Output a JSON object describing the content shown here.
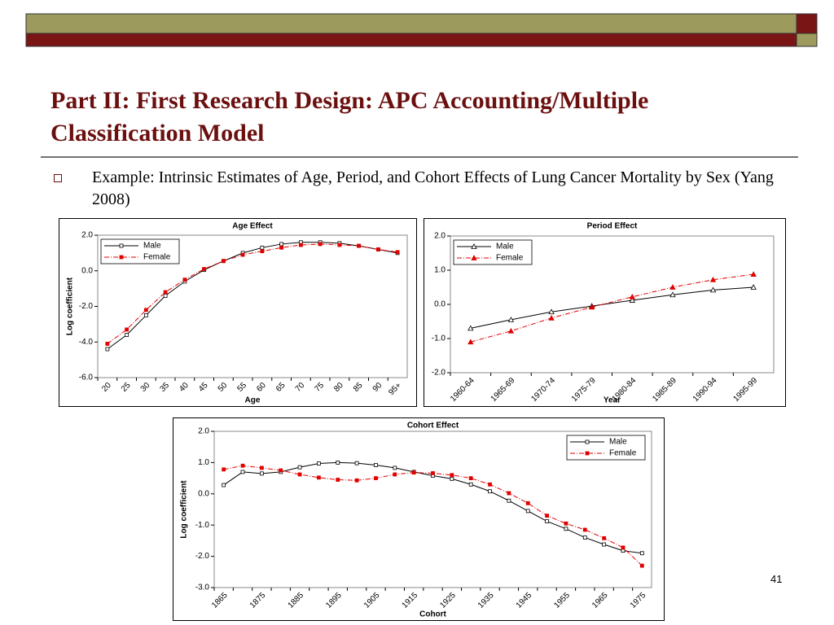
{
  "slide_title": "Part II:  First Research Design: APC Accounting/Multiple Classification Model",
  "bullet": "Example: Intrinsic Estimates of Age, Period, and Cohort Effects of Lung Cancer Mortality by Sex (Yang 2008)",
  "page_number": "41",
  "chart_data": [
    {
      "type": "line",
      "title": "Age Effect",
      "x_label": "Age",
      "y_label": "Log coefficient",
      "categories": [
        "20",
        "25",
        "30",
        "35",
        "40",
        "45",
        "50",
        "55",
        "60",
        "65",
        "70",
        "75",
        "80",
        "85",
        "90",
        "95+"
      ],
      "series": [
        {
          "name": "Male",
          "color": "#000000",
          "marker": "square",
          "values": [
            -4.4,
            -3.6,
            -2.5,
            -1.4,
            -0.6,
            0.05,
            0.55,
            1.0,
            1.3,
            1.5,
            1.6,
            1.6,
            1.55,
            1.4,
            1.2,
            1.0
          ]
        },
        {
          "name": "Female",
          "color": "#e00000",
          "marker": "square",
          "values": [
            -4.1,
            -3.3,
            -2.2,
            -1.2,
            -0.5,
            0.1,
            0.55,
            0.9,
            1.1,
            1.3,
            1.45,
            1.5,
            1.45,
            1.4,
            1.2,
            1.05
          ]
        }
      ],
      "ylim": [
        -6,
        2
      ],
      "yticks": [
        {
          "value": -6,
          "label": "-6.0"
        },
        {
          "value": -4,
          "label": "-4.0"
        },
        {
          "value": -2,
          "label": "-2.0"
        },
        {
          "value": 0,
          "label": "0.0"
        },
        {
          "value": 2,
          "label": "2.0"
        }
      ],
      "legend": "upper left"
    },
    {
      "type": "line",
      "title": "Period Effect",
      "x_label": "Year",
      "categories": [
        "1960-64",
        "1965-69",
        "1970-74",
        "1975-79",
        "1980-84",
        "1985-89",
        "1990-94",
        "1995-99"
      ],
      "series": [
        {
          "name": "Male",
          "color": "#000000",
          "marker": "triangle",
          "values": [
            -0.7,
            -0.45,
            -0.22,
            -0.05,
            0.12,
            0.28,
            0.42,
            0.5
          ]
        },
        {
          "name": "Female",
          "color": "#e00000",
          "marker": "triangle",
          "values": [
            -1.1,
            -0.78,
            -0.4,
            -0.08,
            0.22,
            0.5,
            0.72,
            0.88
          ]
        }
      ],
      "ylim": [
        -2,
        2
      ],
      "yticks": [
        {
          "value": -2,
          "label": "-2.0"
        },
        {
          "value": -1,
          "label": "-1.0"
        },
        {
          "value": 0,
          "label": "0.0"
        },
        {
          "value": 1,
          "label": "1.0"
        },
        {
          "value": 2,
          "label": "2.0"
        }
      ],
      "legend": "upper left"
    },
    {
      "type": "line",
      "title": "Cohort Effect",
      "x_label": "Cohort",
      "y_label": "Log coefficient",
      "categories": [
        "1865",
        null,
        "1875",
        null,
        "1885",
        null,
        "1895",
        null,
        "1905",
        null,
        "1915",
        null,
        "1925",
        null,
        "1935",
        null,
        "1945",
        null,
        "1955",
        null,
        "1965",
        null,
        "1975"
      ],
      "series": [
        {
          "name": "Male",
          "color": "#000000",
          "marker": "square",
          "values": [
            0.28,
            0.7,
            0.65,
            0.7,
            0.85,
            0.97,
            1.0,
            0.98,
            0.92,
            0.83,
            0.7,
            0.58,
            0.48,
            0.3,
            0.08,
            -0.22,
            -0.55,
            -0.88,
            -1.12,
            -1.4,
            -1.62,
            -1.82,
            -1.9
          ]
        },
        {
          "name": "Female",
          "color": "#e00000",
          "marker": "square",
          "values": [
            0.78,
            0.9,
            0.83,
            0.75,
            0.62,
            0.52,
            0.45,
            0.43,
            0.5,
            0.62,
            0.68,
            0.66,
            0.6,
            0.5,
            0.3,
            0.02,
            -0.3,
            -0.7,
            -0.95,
            -1.15,
            -1.42,
            -1.72,
            -2.3
          ]
        }
      ],
      "ylim": [
        -3,
        2
      ],
      "yticks": [
        {
          "value": -3,
          "label": "-3.0"
        },
        {
          "value": -2,
          "label": "-2.0"
        },
        {
          "value": -1,
          "label": "-1.0"
        },
        {
          "value": 0,
          "label": "0.0"
        },
        {
          "value": 1,
          "label": "1.0"
        },
        {
          "value": 2,
          "label": "2.0"
        }
      ],
      "legend": "upper right"
    }
  ]
}
